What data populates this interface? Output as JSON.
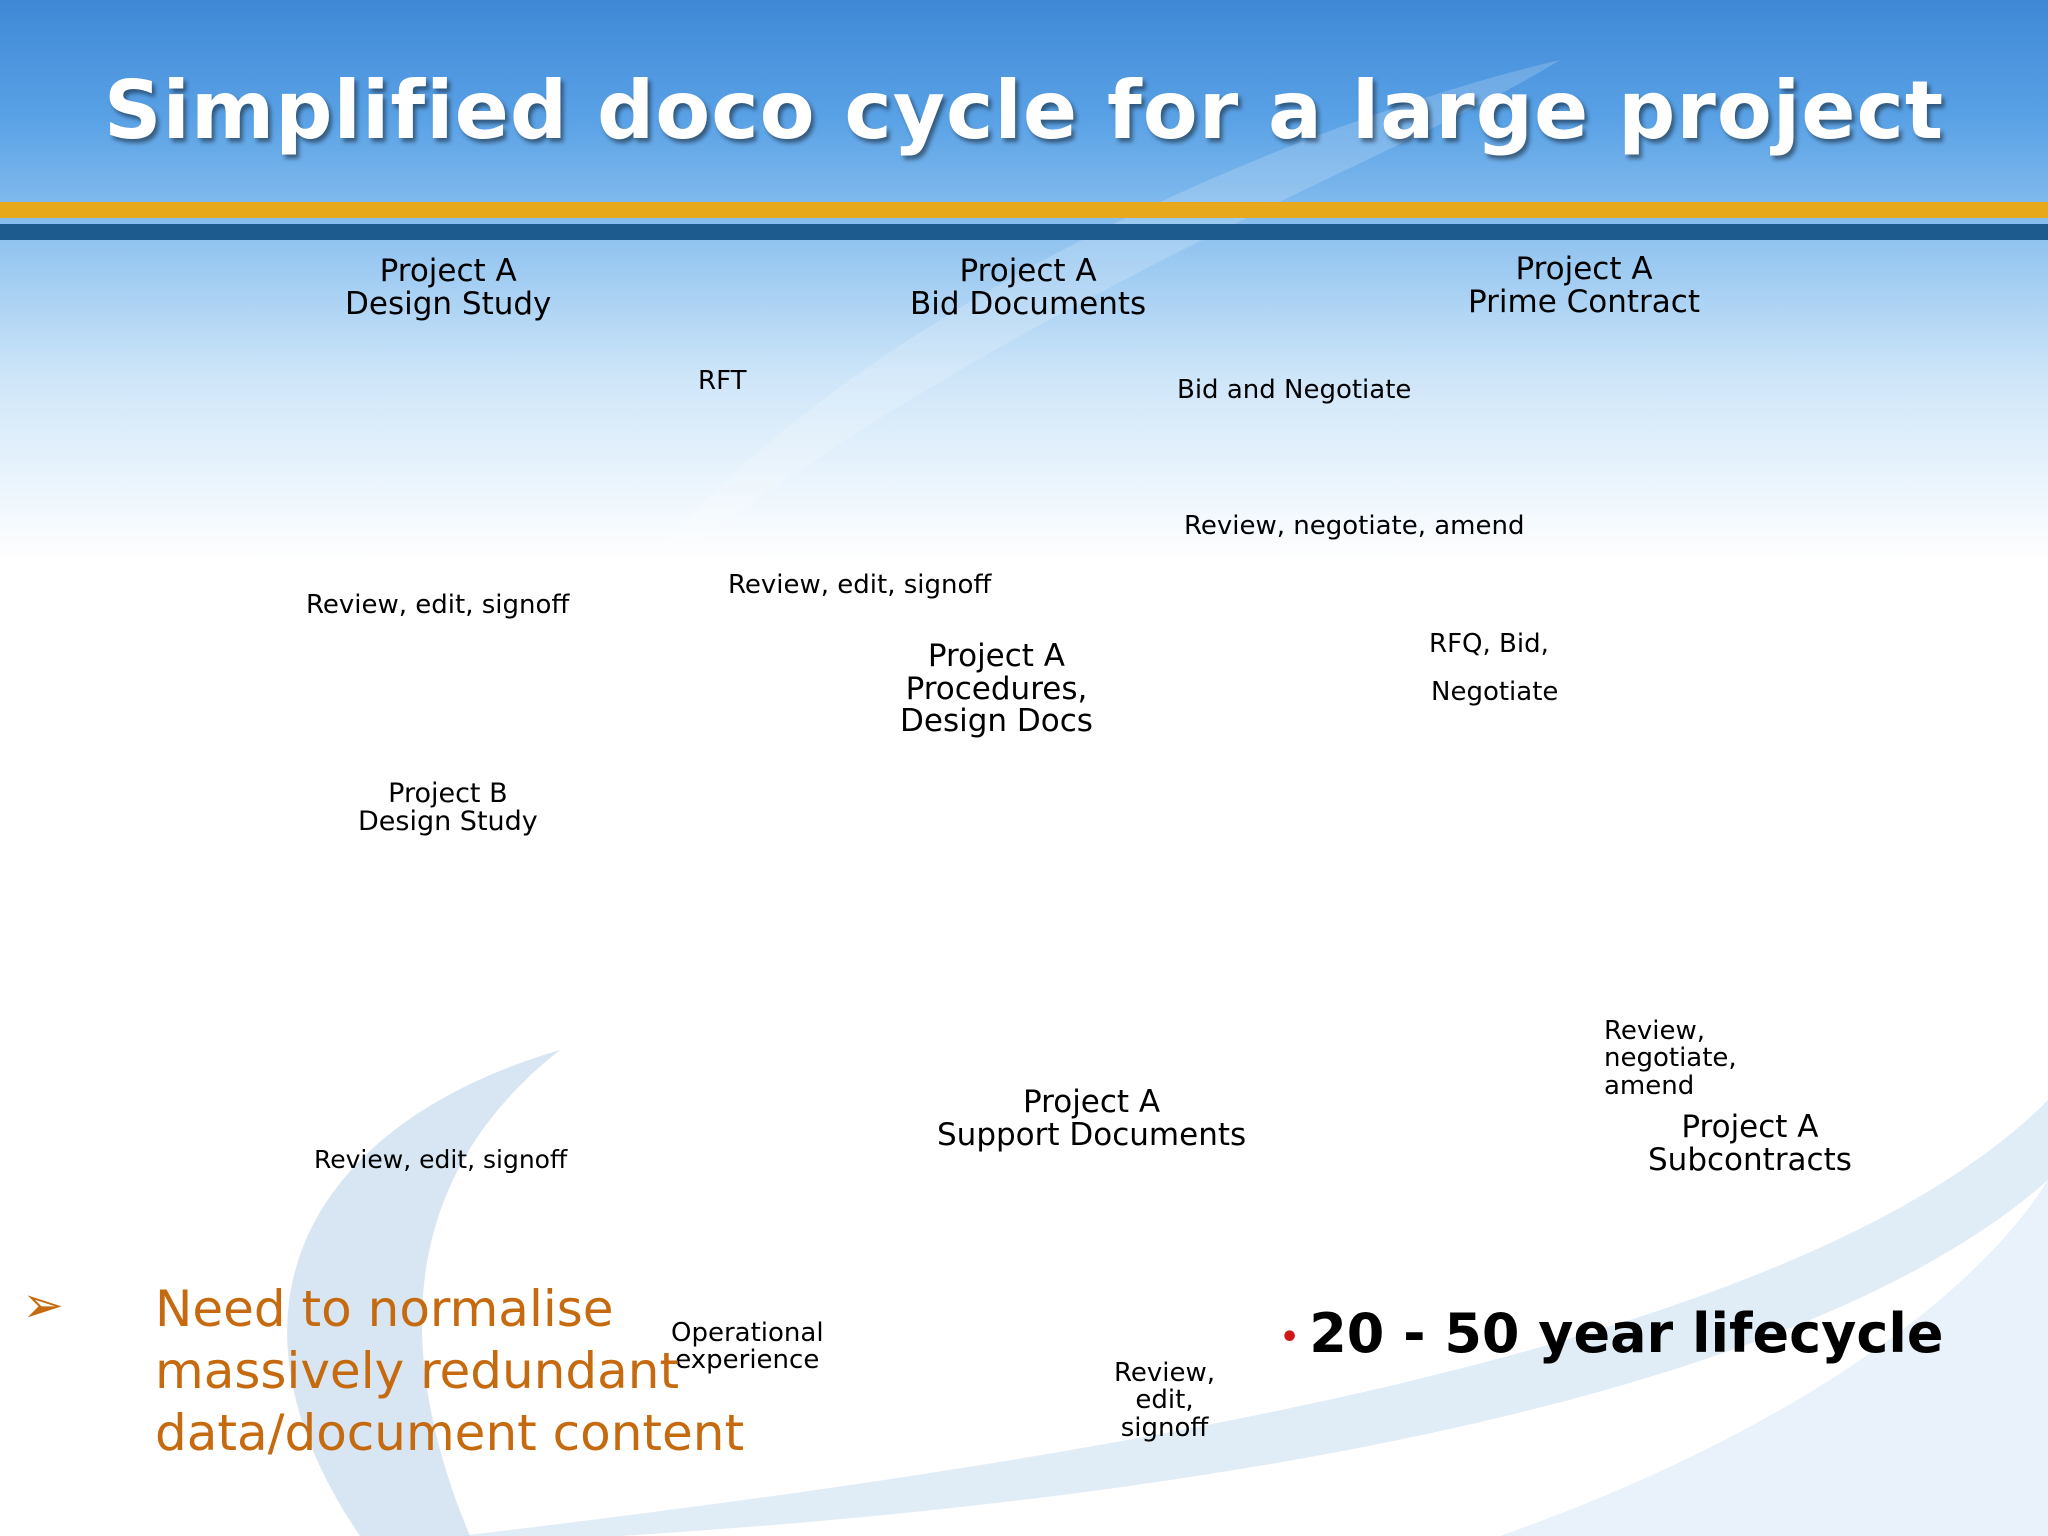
{
  "title": "Simplified doco cycle for a large project",
  "nodes": {
    "design_study_a": "Project A\nDesign Study",
    "bid_documents_a": "Project A\nBid Documents",
    "prime_contract_a": "Project A\nPrime Contract",
    "procedures_a": "Project A\nProcedures,\nDesign Docs",
    "design_study_b": "Project B\nDesign Study",
    "support_documents_a": "Project A\nSupport Documents",
    "subcontracts_a": "Project A\nSubcontracts"
  },
  "edges": {
    "rft": "RFT",
    "bid_negotiate": "Bid and Negotiate",
    "review_negotiate_amend": "Review, negotiate, amend",
    "review_edit_signoff_1": "Review, edit, signoff",
    "review_edit_signoff_2": "Review, edit, signoff",
    "rfq_bid": "RFQ, Bid,",
    "negotiate": "Negotiate",
    "review_edit_signoff_3": "Review, edit, signoff",
    "review_negotiate_amend_2": "Review,\nnegotiate,\namend",
    "operational_experience": "Operational\nexperience",
    "review_edit_signoff_4": "Review,\nedit,\nsignoff"
  },
  "bullet_main": {
    "marker": "➢",
    "text": "Need to normalise\nmassively redundant\ndata/document content"
  },
  "bullet_side": {
    "marker": "•",
    "text": "20 - 50 year lifecycle"
  },
  "colors": {
    "accent_orange": "#c66a0f",
    "band_gold": "#e8a81c",
    "band_blue": "#1d5b8f",
    "bullet_red": "#d01818"
  }
}
